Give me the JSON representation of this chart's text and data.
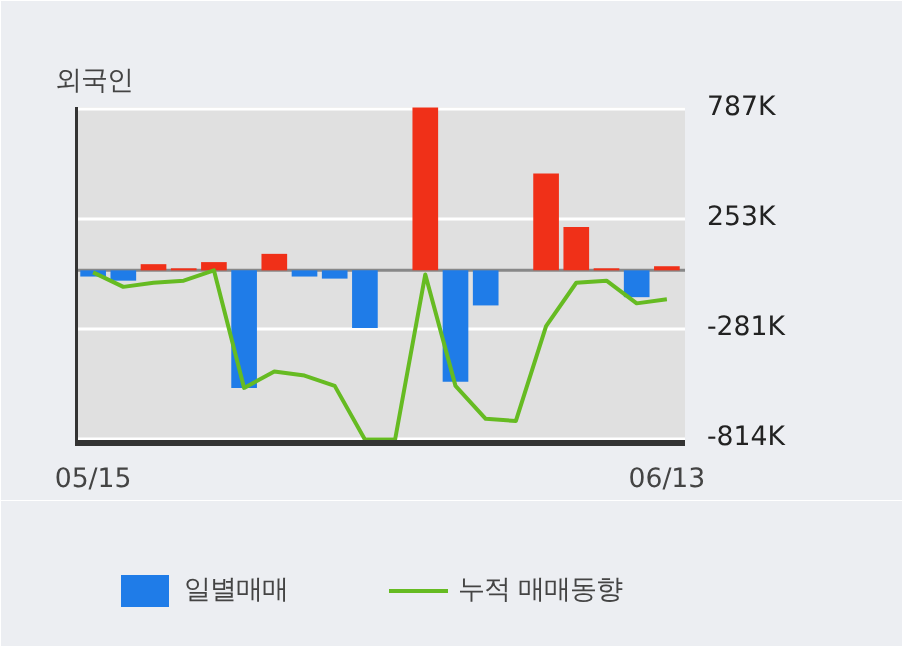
{
  "chart_data": {
    "type": "bar",
    "title": "외국인",
    "categories": [
      "05/15",
      null,
      null,
      null,
      null,
      null,
      null,
      null,
      null,
      null,
      null,
      null,
      null,
      null,
      null,
      null,
      null,
      null,
      null,
      "06/13"
    ],
    "series": [
      {
        "name": "일별매매",
        "colors": [
          "#1f7ce8",
          "#1f7ce8",
          "#f03018",
          "#f03018",
          "#f03018",
          "#1f7ce8",
          "#f03018",
          "#1f7ce8",
          "#1f7ce8",
          "#1f7ce8",
          "#f03018",
          "#f03018",
          "#1f7ce8",
          "#1f7ce8",
          "#f03018",
          "#f03018",
          "#f03018",
          "#f03018",
          "#1f7ce8",
          "#f03018"
        ],
        "values": [
          -30,
          -50,
          30,
          10,
          40,
          -570,
          80,
          -30,
          -40,
          -280,
          0,
          790,
          -540,
          -170,
          0,
          470,
          210,
          10,
          -130,
          20
        ]
      },
      {
        "name": "누적 매매동향",
        "type": "line",
        "color": "#66bb22",
        "values": [
          -10,
          -80,
          -60,
          -50,
          0,
          -570,
          -490,
          -510,
          -560,
          -820,
          -820,
          -20,
          -560,
          -720,
          -730,
          -270,
          -60,
          -50,
          -160,
          -140
        ]
      }
    ],
    "ylim": [
      -837,
      792
    ],
    "yticks": [
      {
        "value": 787,
        "label": "787K"
      },
      {
        "value": 253,
        "label": "253K"
      },
      {
        "value": -281,
        "label": "-281K"
      },
      {
        "value": -814,
        "label": "-814K"
      }
    ],
    "grid": "y",
    "legend": "bottom"
  }
}
